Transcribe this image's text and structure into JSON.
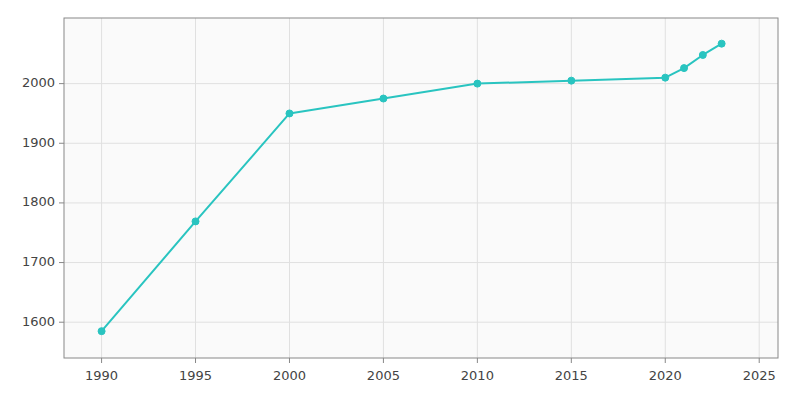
{
  "chart_data": {
    "type": "line",
    "x": [
      1990,
      1995,
      2000,
      2005,
      2010,
      2015,
      2020,
      2021,
      2022,
      2023
    ],
    "values": [
      1585,
      1769,
      1950,
      1975,
      2000,
      2005,
      2010,
      2026,
      2048,
      2067
    ],
    "color": "#29C4C0",
    "marker": "circle",
    "xlim": [
      1988,
      2026
    ],
    "ylim": [
      1540,
      2110
    ],
    "xticks": [
      1990,
      1995,
      2000,
      2005,
      2010,
      2015,
      2020,
      2025
    ],
    "yticks": [
      1600,
      1700,
      1800,
      1900,
      2000
    ],
    "grid": true
  }
}
